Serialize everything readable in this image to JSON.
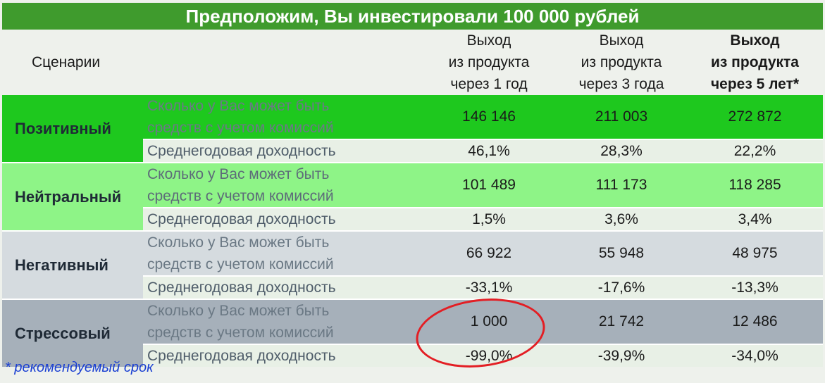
{
  "title": "Предположим, Вы инвестировали 100 000 рублей",
  "header": {
    "scenarios": "Сценарии",
    "col1": [
      "Выход",
      "из продукта",
      "через 1 год"
    ],
    "col2": [
      "Выход",
      "из продукта",
      "через 3 года"
    ],
    "col3": [
      "Выход",
      "из продукта",
      "через 5 лет*"
    ]
  },
  "labels": {
    "amount": [
      "Сколько у Вас может быть",
      "средств с учетом комиссий"
    ],
    "yield": "Среднегодовая доходность"
  },
  "rows": [
    {
      "name": "Позитивный",
      "amount": [
        "146 146",
        "211 003",
        "272 872"
      ],
      "yield": [
        "46,1%",
        "28,3%",
        "22,2%"
      ]
    },
    {
      "name": "Нейтральный",
      "amount": [
        "101 489",
        "111 173",
        "118 285"
      ],
      "yield": [
        "1,5%",
        "3,6%",
        "3,4%"
      ]
    },
    {
      "name": "Негативный",
      "amount": [
        "66 922",
        "55 948",
        "48 975"
      ],
      "yield": [
        "-33,1%",
        "-17,6%",
        "-13,3%"
      ]
    },
    {
      "name": "Стрессовый",
      "amount": [
        "1 000",
        "21 742",
        "12 486"
      ],
      "yield": [
        "-99,0%",
        "-39,9%",
        "-34,0%"
      ]
    }
  ],
  "footnote": "* рекомендуемый срок",
  "colors": {
    "title_bg": "#3f9b2d",
    "positive": "#1ec81e",
    "neutral": "#8ef487",
    "negative": "#d5dbdf",
    "stress": "#a6b0ba",
    "highlight_circle": "#e31e24",
    "footnote": "#1a3fd2"
  }
}
